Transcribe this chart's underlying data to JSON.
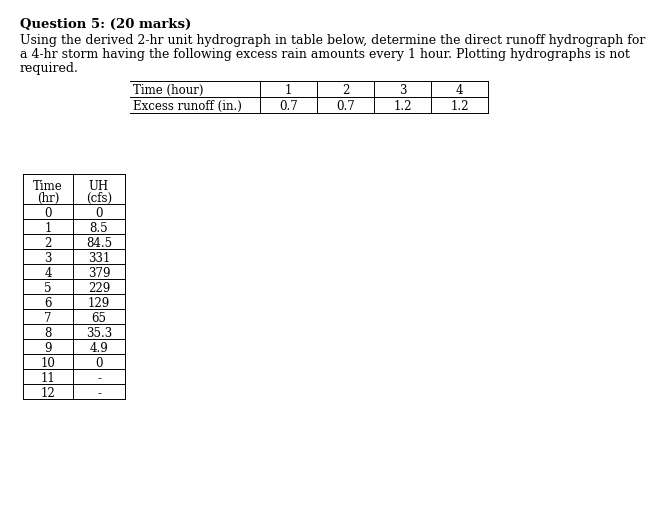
{
  "title": "Question 5: (20 marks)",
  "desc1": "Using the derived 2-hr unit hydrograph in table below, determine the direct runoff hydrograph for",
  "desc2": "a 4-hr storm having the following excess rain amounts every 1 hour. Plotting hydrographs is not",
  "desc3": "required.",
  "rain_headers": [
    "Time (hour)",
    "1",
    "2",
    "3",
    "4"
  ],
  "rain_row": [
    "Excess runoff (in.)",
    "0.7",
    "0.7",
    "1.2",
    "1.2"
  ],
  "uh_time": [
    "0",
    "1",
    "2",
    "3",
    "4",
    "5",
    "6",
    "7",
    "8",
    "9",
    "10",
    "11",
    "12"
  ],
  "uh_vals": [
    "0",
    "8.5",
    "84.5",
    "331",
    "379",
    "229",
    "129",
    "65",
    "35.3",
    "4.9",
    "0",
    "-",
    "-"
  ],
  "bg_color": "#ffffff",
  "text_color": "#000000",
  "title_fontsize": 9.5,
  "body_fontsize": 9.0,
  "table_fontsize": 8.5
}
